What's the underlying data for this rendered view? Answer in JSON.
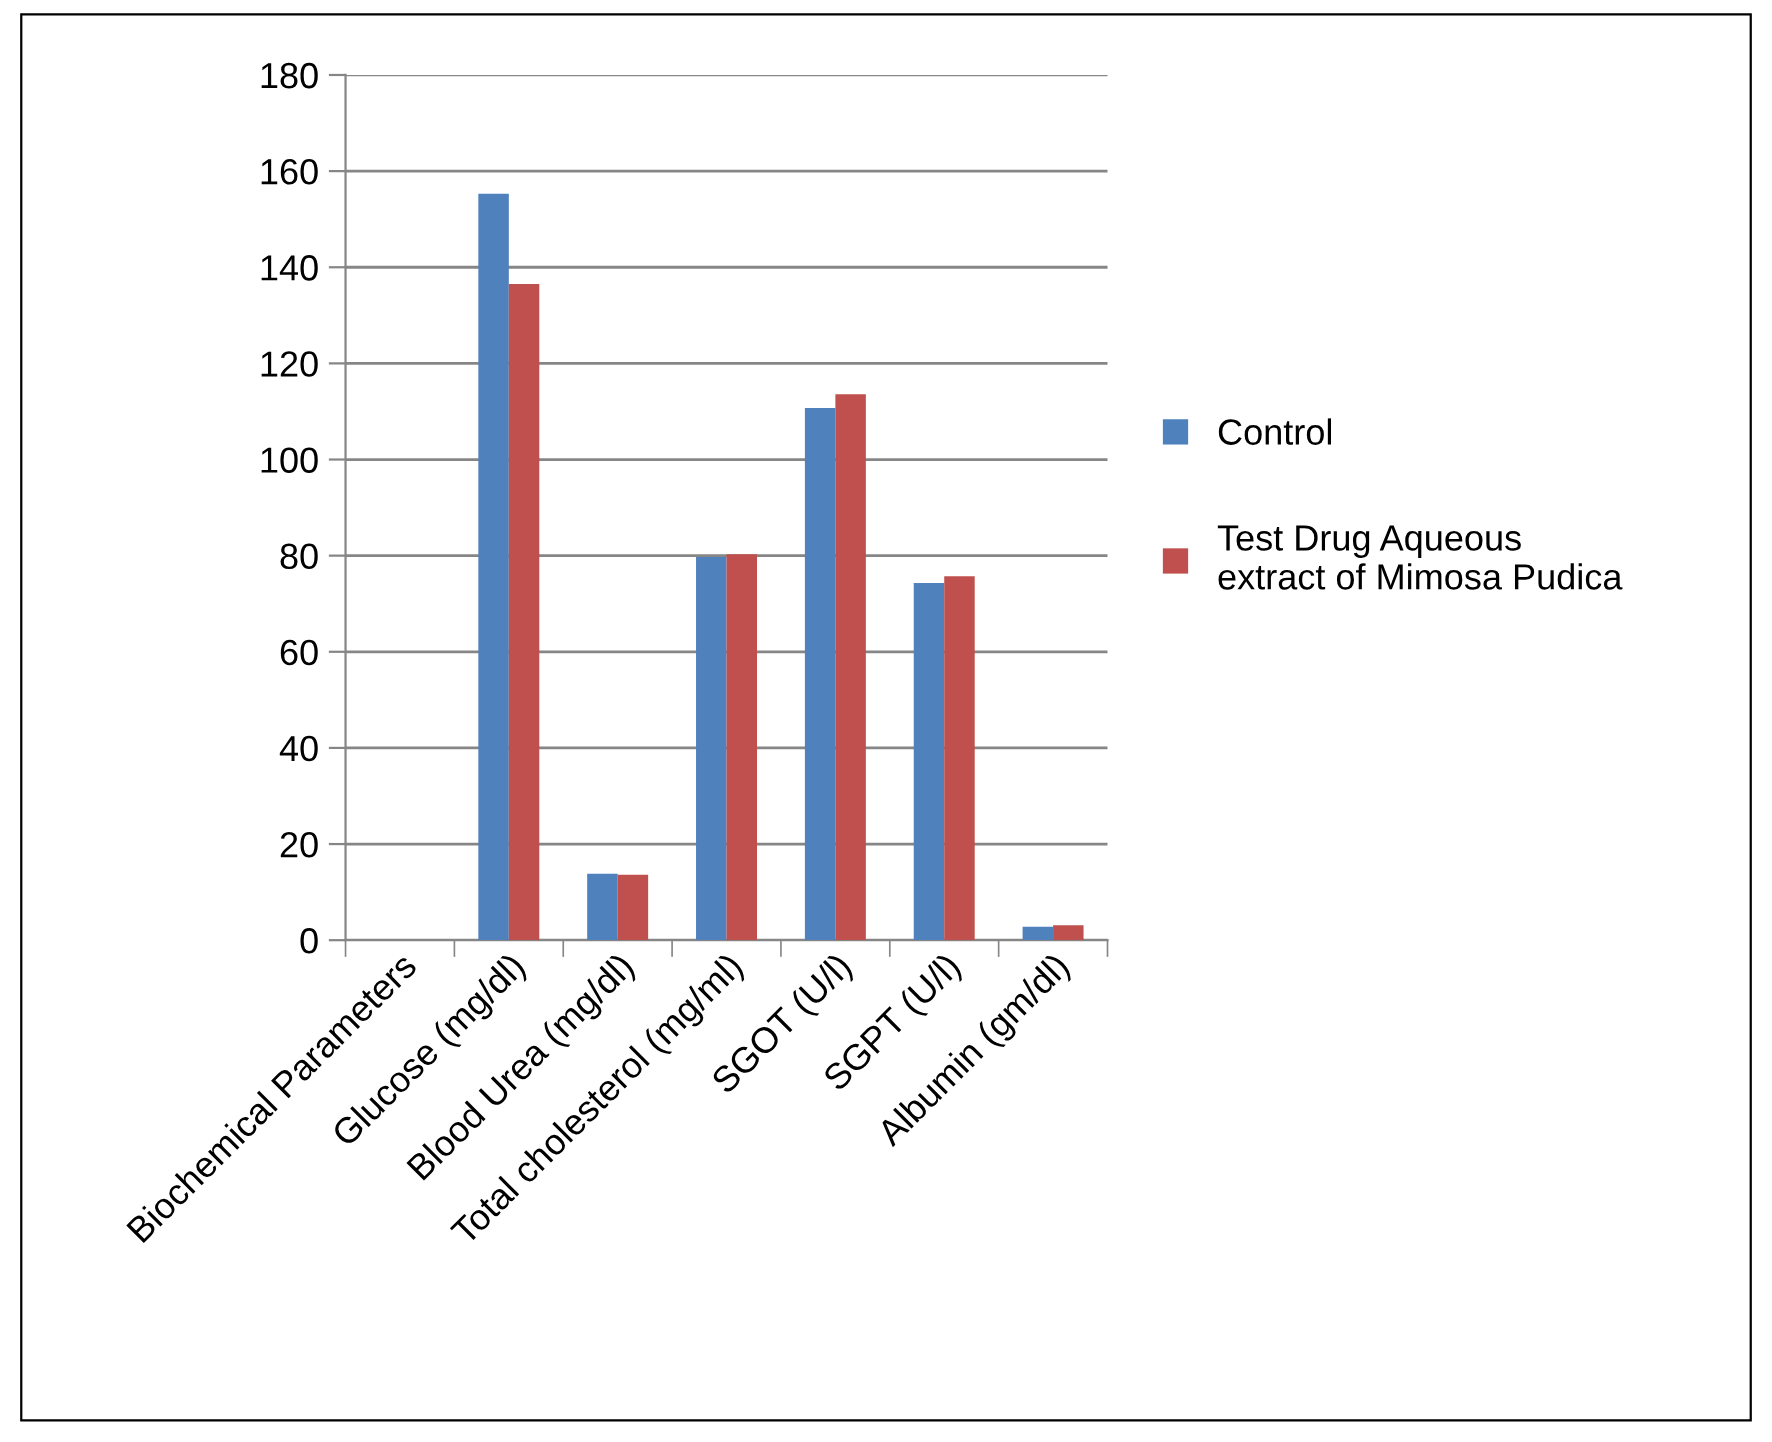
{
  "chart_data": {
    "type": "bar",
    "categories": [
      "Biochemical Parameters",
      "Glucose (mg/dl)",
      "Blood Urea (mg/dl)",
      "Total cholesterol (mg/ml)",
      "SGOT (U/l)",
      "SGPT (U/l)",
      "Albumin (gm/dl)"
    ],
    "series": [
      {
        "name": "Control",
        "color": "#4f81bd",
        "values": [
          null,
          155.3,
          13.8,
          79.7,
          110.7,
          74.3,
          2.8
        ]
      },
      {
        "name": "Test Drug Aqueous extract of Mimosa Pudica",
        "color": "#c0504d",
        "values": [
          null,
          136.5,
          13.6,
          80.3,
          113.6,
          75.7,
          3.1
        ]
      }
    ],
    "ylim": [
      0,
      180
    ],
    "yticks": [
      0,
      20,
      40,
      60,
      80,
      100,
      120,
      140,
      160,
      180
    ],
    "grid": "y",
    "legend": "right"
  }
}
